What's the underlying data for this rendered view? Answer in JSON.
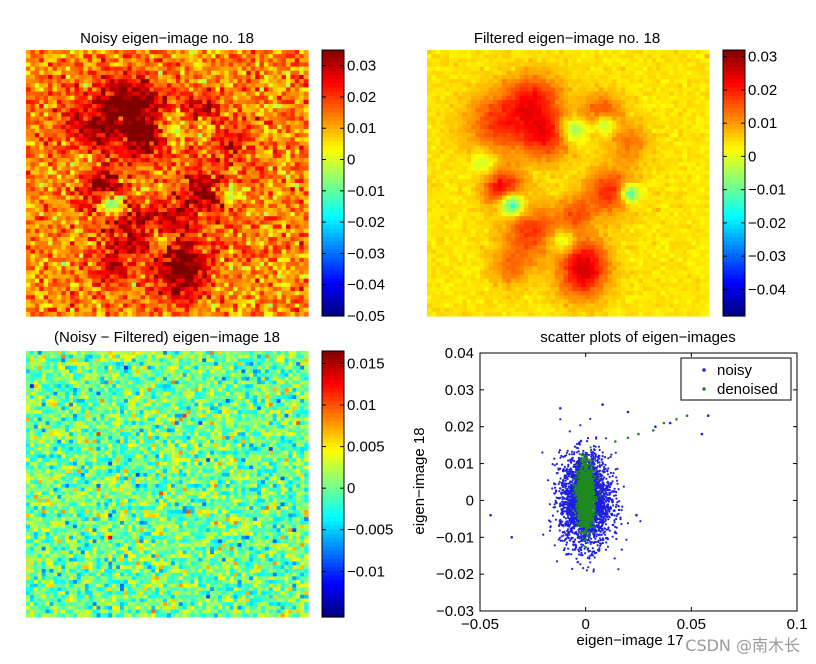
{
  "chart_data": [
    {
      "type": "heatmap",
      "title": "Noisy eigen−image no. 18",
      "colorbar": {
        "min": -0.05,
        "max": 0.035,
        "ticks": [
          0.03,
          0.02,
          0.01,
          0,
          -0.01,
          -0.02,
          -0.03,
          -0.04,
          -0.05
        ],
        "tick_labels": [
          "0.03",
          "0.02",
          "0.01",
          "0",
          "−0.01",
          "−0.02",
          "−0.03",
          "−0.04",
          "−0.05"
        ]
      },
      "field_level": 0.013,
      "noise_amplitude": 0.012
    },
    {
      "type": "heatmap",
      "title": "Filtered eigen−image no. 18",
      "colorbar": {
        "min": -0.048,
        "max": 0.032,
        "ticks": [
          0.03,
          0.02,
          0.01,
          0,
          -0.01,
          -0.02,
          -0.03,
          -0.04
        ],
        "tick_labels": [
          "0.03",
          "0.02",
          "0.01",
          "0",
          "−0.01",
          "−0.02",
          "−0.03",
          "−0.04"
        ]
      },
      "field_level": 0.004,
      "noise_amplitude": 0.002
    },
    {
      "type": "heatmap",
      "title": "(Noisy − Filtered) eigen−image 18",
      "colorbar": {
        "min": -0.0155,
        "max": 0.0165,
        "ticks": [
          0.015,
          0.01,
          0.005,
          0,
          -0.005,
          -0.01
        ],
        "tick_labels": [
          "0.015",
          "0.01",
          "0.005",
          "0",
          "−0.005",
          "−0.01"
        ]
      },
      "field_level": 0.0,
      "noise_amplitude": 0.006
    },
    {
      "type": "scatter",
      "title": "scatter plots of eigen−images",
      "xlabel": "eigen−image 17",
      "ylabel": "eigen−image 18",
      "xlim": [
        -0.05,
        0.1
      ],
      "ylim": [
        -0.03,
        0.04
      ],
      "xticks": [
        -0.05,
        0,
        0.05,
        0.1
      ],
      "xtick_labels": [
        "−0.05",
        "0",
        "0.05",
        "0.1"
      ],
      "yticks": [
        0.04,
        0.03,
        0.02,
        0.01,
        0,
        -0.01,
        -0.02,
        -0.03
      ],
      "ytick_labels": [
        "0.04",
        "0.03",
        "0.02",
        "0.01",
        "0",
        "−0.01",
        "−0.02",
        "−0.03"
      ],
      "legend": "top-right",
      "series": [
        {
          "name": "noisy",
          "color": "#1f1fe0",
          "center": [
            0,
            0
          ],
          "spread": [
            0.011,
            0.0065
          ],
          "outliers": [
            [
              0.058,
              0.023
            ],
            [
              0.055,
              0.018
            ],
            [
              0.04,
              0.021
            ],
            [
              0.033,
              0.02
            ],
            [
              0.02,
              0.024
            ],
            [
              -0.045,
              -0.004
            ],
            [
              -0.035,
              -0.01
            ],
            [
              0.008,
              0.026
            ],
            [
              -0.012,
              0.025
            ],
            [
              0.024,
              -0.004
            ]
          ]
        },
        {
          "name": "denoised",
          "color": "#1f8a1f",
          "center": [
            0,
            0.001
          ],
          "spread": [
            0.0035,
            0.0045
          ],
          "outliers": [
            [
              0.048,
              0.023
            ],
            [
              0.043,
              0.022
            ],
            [
              0.037,
              0.021
            ],
            [
              0.032,
              0.019
            ],
            [
              0.025,
              0.018
            ],
            [
              0.02,
              0.017
            ],
            [
              0.014,
              0.016
            ]
          ]
        }
      ]
    }
  ],
  "watermark": "CSDN @南木长"
}
